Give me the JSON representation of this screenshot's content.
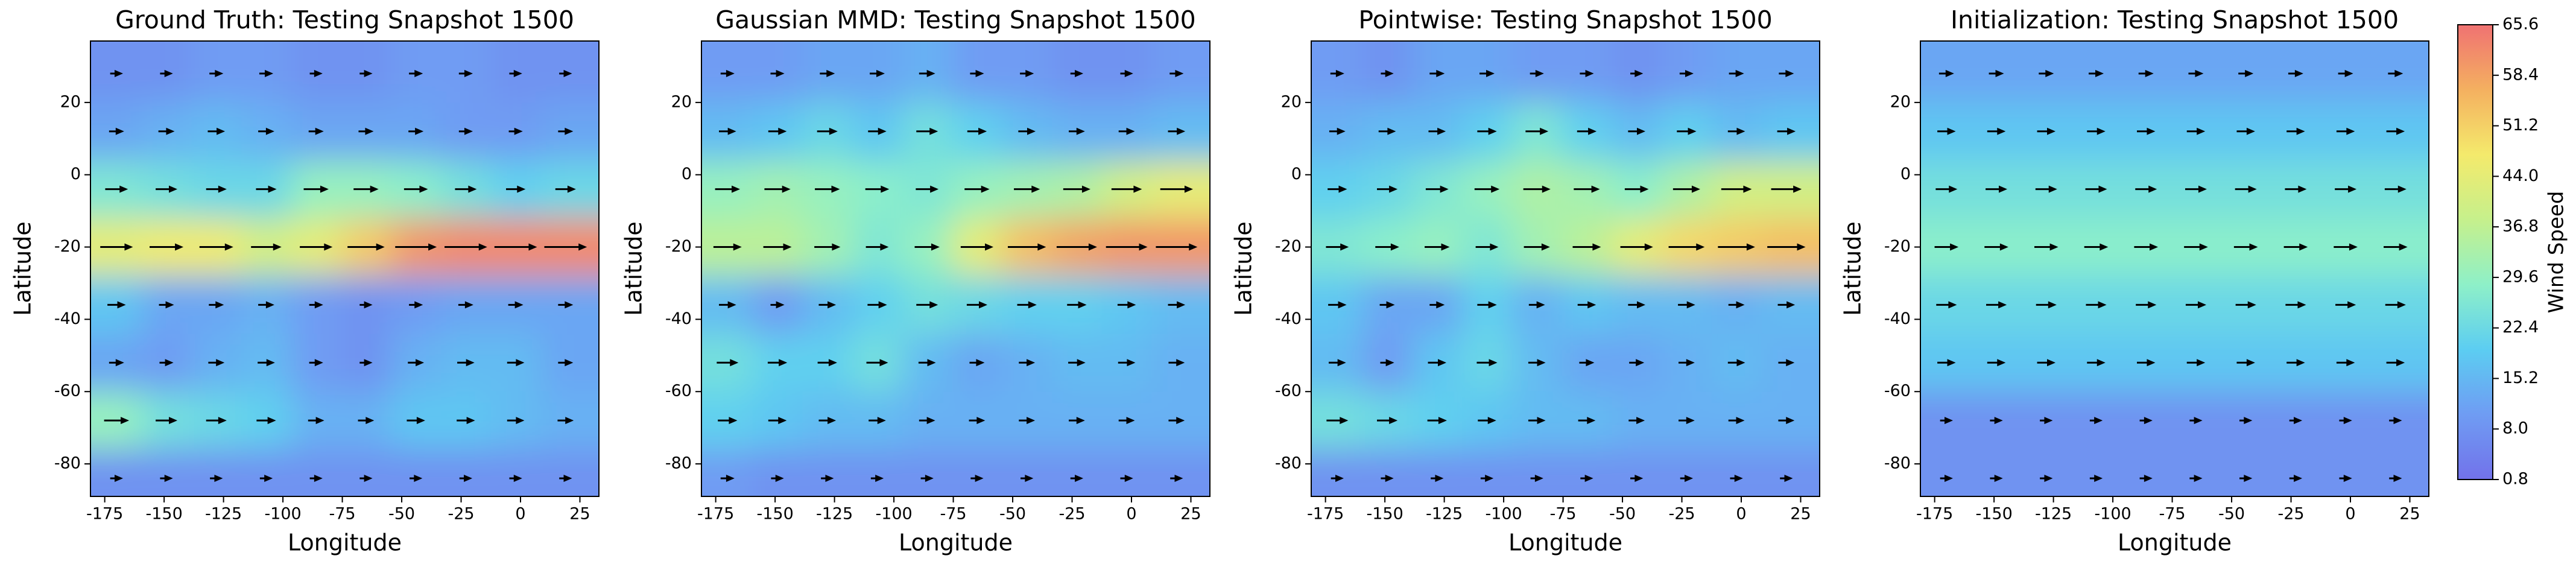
{
  "chart_data": [
    {
      "type": "heatmap",
      "title": "Ground Truth: Testing Snapshot 1500",
      "xlabel": "Longitude",
      "ylabel": "Latitude",
      "x": [
        -170,
        -149,
        -128,
        -107,
        -86,
        -65,
        -44,
        -23,
        -2,
        19
      ],
      "y": [
        28,
        12,
        -4,
        -20,
        -36,
        -52,
        -68,
        -84
      ],
      "values": [
        [
          8,
          8,
          10,
          10,
          8,
          8,
          10,
          10,
          8,
          8
        ],
        [
          12,
          14,
          16,
          14,
          12,
          12,
          12,
          10,
          10,
          12
        ],
        [
          26,
          24,
          22,
          22,
          30,
          30,
          28,
          24,
          20,
          22
        ],
        [
          44,
          46,
          46,
          40,
          44,
          52,
          60,
          62,
          62,
          62
        ],
        [
          18,
          12,
          12,
          14,
          10,
          8,
          10,
          12,
          12,
          12
        ],
        [
          12,
          10,
          14,
          16,
          10,
          8,
          14,
          16,
          16,
          12
        ],
        [
          30,
          24,
          22,
          20,
          14,
          14,
          18,
          18,
          16,
          14
        ],
        [
          8,
          8,
          8,
          8,
          8,
          8,
          8,
          8,
          8,
          8
        ]
      ],
      "xlim": [
        -181,
        33
      ],
      "ylim": [
        -89,
        37
      ],
      "xticks": [
        -175,
        -150,
        -125,
        -100,
        -75,
        -50,
        -25,
        0,
        25
      ],
      "yticks": [
        -80,
        -60,
        -40,
        -20,
        0,
        20
      ]
    },
    {
      "type": "heatmap",
      "title": "Gaussian MMD: Testing Snapshot 1500",
      "xlabel": "Longitude",
      "ylabel": "Latitude",
      "x": [
        -170,
        -149,
        -128,
        -107,
        -86,
        -65,
        -44,
        -23,
        -2,
        19
      ],
      "y": [
        28,
        12,
        -4,
        -20,
        -36,
        -52,
        -68,
        -84
      ],
      "values": [
        [
          10,
          10,
          12,
          12,
          14,
          10,
          10,
          8,
          8,
          10
        ],
        [
          16,
          18,
          22,
          18,
          24,
          20,
          16,
          14,
          14,
          16
        ],
        [
          30,
          32,
          30,
          28,
          26,
          30,
          32,
          34,
          40,
          44
        ],
        [
          36,
          36,
          32,
          26,
          30,
          44,
          54,
          58,
          60,
          60
        ],
        [
          16,
          10,
          16,
          20,
          24,
          22,
          20,
          20,
          18,
          16
        ],
        [
          24,
          20,
          20,
          24,
          16,
          12,
          14,
          16,
          16,
          14
        ],
        [
          20,
          18,
          16,
          16,
          14,
          14,
          14,
          14,
          14,
          14
        ],
        [
          10,
          8,
          8,
          8,
          8,
          8,
          8,
          8,
          8,
          8
        ]
      ],
      "xlim": [
        -181,
        33
      ],
      "ylim": [
        -89,
        37
      ],
      "xticks": [
        -175,
        -150,
        -125,
        -100,
        -75,
        -50,
        -25,
        0,
        25
      ],
      "yticks": [
        -80,
        -60,
        -40,
        -20,
        0,
        20
      ]
    },
    {
      "type": "heatmap",
      "title": "Pointwise: Testing Snapshot 1500",
      "xlabel": "Longitude",
      "ylabel": "Latitude",
      "x": [
        -170,
        -149,
        -128,
        -107,
        -86,
        -65,
        -44,
        -23,
        -2,
        19
      ],
      "y": [
        28,
        12,
        -4,
        -20,
        -36,
        -52,
        -68,
        -84
      ],
      "values": [
        [
          10,
          8,
          12,
          12,
          10,
          10,
          8,
          10,
          12,
          12
        ],
        [
          14,
          16,
          16,
          20,
          26,
          20,
          16,
          20,
          16,
          18
        ],
        [
          20,
          22,
          26,
          30,
          34,
          32,
          28,
          34,
          40,
          40
        ],
        [
          26,
          28,
          30,
          26,
          32,
          36,
          44,
          50,
          52,
          54
        ],
        [
          18,
          12,
          12,
          20,
          14,
          18,
          16,
          16,
          14,
          16
        ],
        [
          16,
          10,
          18,
          22,
          16,
          12,
          12,
          14,
          16,
          14
        ],
        [
          24,
          22,
          20,
          18,
          16,
          16,
          14,
          14,
          14,
          14
        ],
        [
          8,
          8,
          8,
          8,
          8,
          8,
          8,
          8,
          8,
          8
        ]
      ],
      "xlim": [
        -181,
        33
      ],
      "ylim": [
        -89,
        37
      ],
      "xticks": [
        -175,
        -150,
        -125,
        -100,
        -75,
        -50,
        -25,
        0,
        25
      ],
      "yticks": [
        -80,
        -60,
        -40,
        -20,
        0,
        20
      ]
    },
    {
      "type": "heatmap",
      "title": "Initialization: Testing Snapshot 1500",
      "xlabel": "Longitude",
      "ylabel": "Latitude",
      "x": [
        -170,
        -149,
        -128,
        -107,
        -86,
        -65,
        -44,
        -23,
        -2,
        19
      ],
      "y": [
        28,
        12,
        -4,
        -20,
        -36,
        -52,
        -68,
        -84
      ],
      "values": [
        [
          12,
          12,
          12,
          12,
          12,
          12,
          12,
          12,
          12,
          12
        ],
        [
          18,
          18,
          18,
          18,
          18,
          18,
          18,
          18,
          18,
          18
        ],
        [
          24,
          24,
          24,
          24,
          24,
          24,
          24,
          24,
          24,
          24
        ],
        [
          28,
          28,
          28,
          28,
          28,
          28,
          28,
          28,
          28,
          28
        ],
        [
          22,
          22,
          22,
          22,
          22,
          22,
          22,
          22,
          22,
          22
        ],
        [
          18,
          18,
          18,
          18,
          18,
          18,
          18,
          18,
          18,
          18
        ],
        [
          8,
          8,
          8,
          8,
          8,
          8,
          8,
          8,
          8,
          8
        ],
        [
          8,
          8,
          8,
          8,
          8,
          8,
          8,
          8,
          8,
          8
        ]
      ],
      "xlim": [
        -181,
        33
      ],
      "ylim": [
        -89,
        37
      ],
      "xticks": [
        -175,
        -150,
        -125,
        -100,
        -75,
        -50,
        -25,
        0,
        25
      ],
      "yticks": [
        -80,
        -60,
        -40,
        -20,
        0,
        20
      ]
    }
  ],
  "colorbar": {
    "label": "Wind Speed",
    "lim": [
      0.8,
      65.6
    ],
    "ticks": [
      0.8,
      {
        "value": 8,
        "label": "8.0"
      },
      15.2,
      22.4,
      29.6,
      36.8,
      {
        "value": 44,
        "label": "44.0"
      },
      51.2,
      58.4,
      65.6
    ],
    "colors": [
      "#7272ea",
      "#6f9cf3",
      "#5ccdf2",
      "#8ef0c8",
      "#c6f08c",
      "#f4ea6c",
      "#f4b060",
      "#f07272"
    ]
  }
}
